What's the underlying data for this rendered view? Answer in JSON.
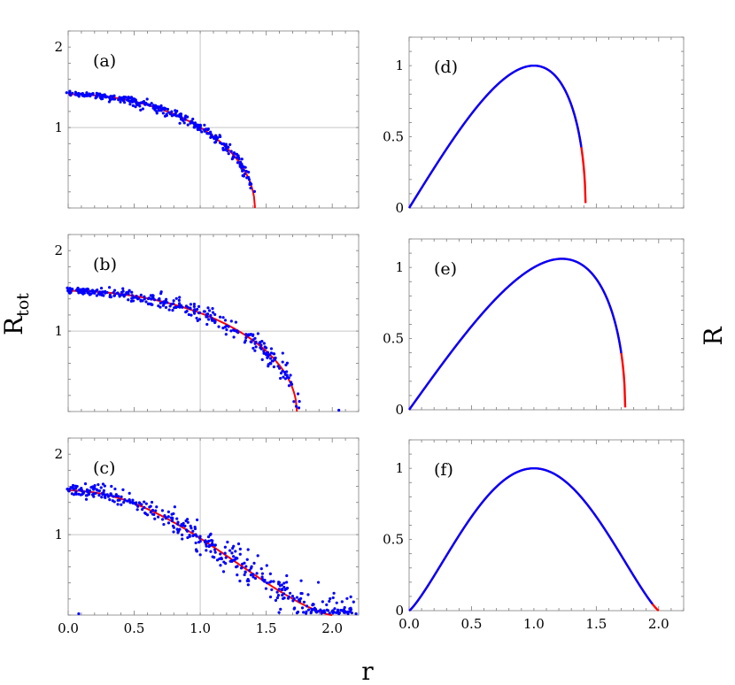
{
  "figure": {
    "ylabel_left": "R_tot",
    "ylabel_right": "R",
    "xlabel": "r"
  },
  "chart_data": [
    {
      "id": "a",
      "type": "scatter",
      "label": "(a)",
      "xlim": [
        0,
        2.2
      ],
      "ylim": [
        0,
        2.2
      ],
      "xticks": [],
      "yticks": [
        1,
        2
      ],
      "ytick_labels": [
        "1",
        "2"
      ],
      "grid": {
        "x": [
          1.0
        ],
        "y": [
          1.0
        ]
      },
      "curve": {
        "color": "#ff0000",
        "formula": "sqrt(2 - r^2)",
        "x_max": 1.414
      },
      "points": {
        "color": "#0000ff",
        "x_max": 1.4,
        "noise": 0.015,
        "count": 300
      }
    },
    {
      "id": "b",
      "type": "scatter",
      "label": "(b)",
      "xlim": [
        0,
        2.2
      ],
      "ylim": [
        0,
        2.2
      ],
      "xticks": [],
      "yticks": [
        1,
        2
      ],
      "ytick_labels": [
        "1",
        "2"
      ],
      "grid": {
        "x": [
          1.0
        ],
        "y": [
          1.0
        ]
      },
      "curve": {
        "color": "#ff0000",
        "formula": "sqrt(3 - r^2) * (1.5/1.732)",
        "x_max": 1.732
      },
      "points": {
        "color": "#0000ff",
        "x_max": 1.75,
        "noise": 0.025,
        "count": 300,
        "outliers": [
          [
            2.05,
            0.0
          ]
        ]
      }
    },
    {
      "id": "c",
      "type": "scatter",
      "label": "(c)",
      "xlim": [
        0,
        2.2
      ],
      "ylim": [
        0,
        2.2
      ],
      "xticks": [
        0.0,
        0.5,
        1.0,
        1.5,
        2.0
      ],
      "xtick_labels": [
        "0.0",
        "0.5",
        "1.0",
        "1.5",
        "2.0"
      ],
      "yticks": [
        1,
        2
      ],
      "ytick_labels": [
        "1",
        "2"
      ],
      "grid": {
        "x": [
          1.0
        ],
        "y": [
          1.0
        ]
      },
      "curve": {
        "color": "#ff0000",
        "formula": "1.55 * cos(pi*r/4)^1.4",
        "x_max": 2.0
      },
      "points": {
        "color": "#0000ff",
        "x_max": 2.15,
        "noise": 0.04,
        "count": 400,
        "outliers": [
          [
            0.08,
            0.0
          ],
          [
            2.05,
            0.0
          ],
          [
            2.12,
            0.0
          ],
          [
            2.18,
            0.0
          ]
        ]
      }
    },
    {
      "id": "d",
      "type": "line",
      "label": "(d)",
      "xlim": [
        0,
        2.2
      ],
      "ylim": [
        0,
        1.2
      ],
      "xticks": [],
      "yticks": [
        0,
        0.5,
        1
      ],
      "ytick_labels": [
        "0",
        "0.5",
        "1"
      ],
      "curve": {
        "color": "#0000ff",
        "formula": "r*sqrt(2-r^2)",
        "x_max": 1.414,
        "red_tail_from": 1.38
      }
    },
    {
      "id": "e",
      "type": "line",
      "label": "(e)",
      "xlim": [
        0,
        2.2
      ],
      "ylim": [
        0,
        1.2
      ],
      "xticks": [],
      "yticks": [
        0,
        0.5,
        1
      ],
      "ytick_labels": [
        "0",
        "0.5",
        "1"
      ],
      "curve": {
        "color": "#0000ff",
        "formula": "r*sqrt(3-r^2)/sqrt(2)",
        "x_max": 1.732,
        "red_tail_from": 1.7
      }
    },
    {
      "id": "f",
      "type": "line",
      "label": "(f)",
      "xlim": [
        0,
        2.2
      ],
      "ylim": [
        0,
        1.2
      ],
      "xticks": [
        0.0,
        0.5,
        1.0,
        1.5,
        2.0
      ],
      "xtick_labels": [
        "0.0",
        "0.5",
        "1.0",
        "1.5",
        "2.0"
      ],
      "yticks": [
        0,
        0.5,
        1
      ],
      "ytick_labels": [
        "0",
        "0.5",
        "1"
      ],
      "curve": {
        "color": "#0000ff",
        "formula": "sin(pi*r/2)^1.2",
        "x_max": 2.0,
        "red_tail_from": 1.95
      }
    }
  ]
}
